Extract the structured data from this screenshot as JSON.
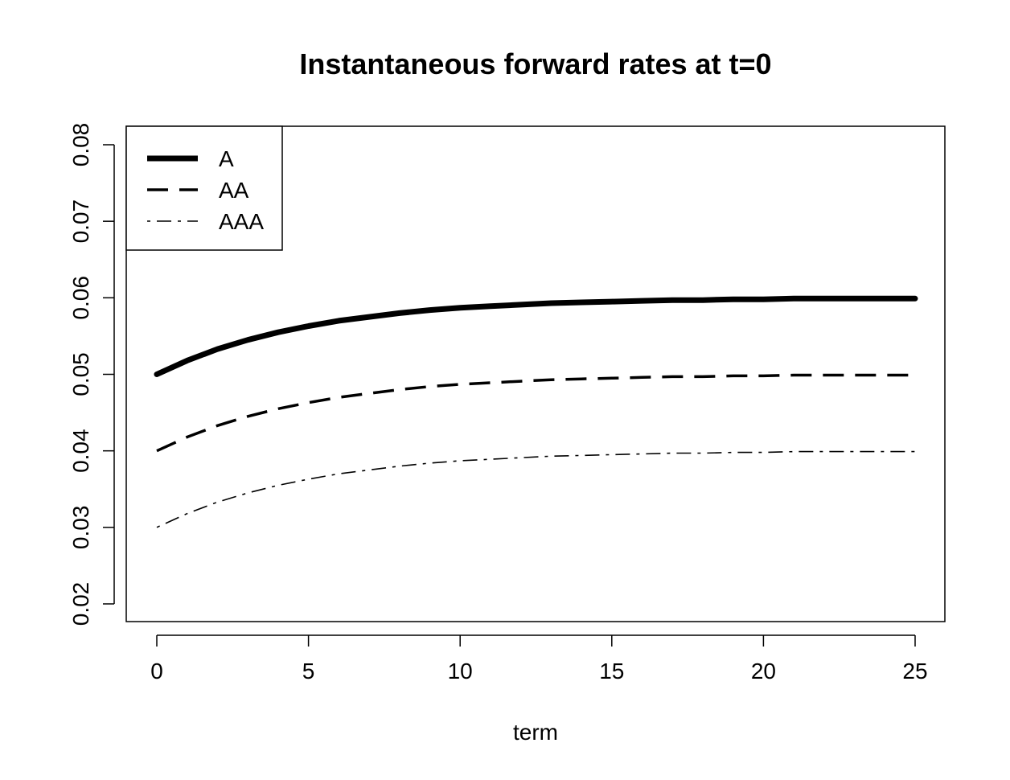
{
  "chart_data": {
    "type": "line",
    "title": "Instantaneous forward rates at t=0",
    "xlabel": "term",
    "ylabel": "",
    "xlim": [
      0,
      25
    ],
    "ylim": [
      0.02,
      0.08
    ],
    "xticks": [
      0,
      5,
      10,
      15,
      20,
      25
    ],
    "xtick_labels": [
      "0",
      "5",
      "10",
      "15",
      "20",
      "25"
    ],
    "yticks": [
      0.02,
      0.03,
      0.04,
      0.05,
      0.06,
      0.07,
      0.08
    ],
    "ytick_labels": [
      "0.02",
      "0.03",
      "0.04",
      "0.05",
      "0.06",
      "0.07",
      "0.08"
    ],
    "grid": false,
    "legend_position": "top-left",
    "x": [
      0,
      1,
      2,
      3,
      4,
      5,
      6,
      7,
      8,
      9,
      10,
      11,
      12,
      13,
      14,
      15,
      16,
      17,
      18,
      19,
      20,
      21,
      22,
      23,
      24,
      25
    ],
    "series": [
      {
        "name": "A",
        "style": "solid-thick",
        "color": "#000000",
        "values": [
          0.05,
          0.0518,
          0.0533,
          0.0545,
          0.0555,
          0.0563,
          0.057,
          0.0575,
          0.058,
          0.0584,
          0.0587,
          0.0589,
          0.0591,
          0.0593,
          0.0594,
          0.0595,
          0.0596,
          0.0597,
          0.0597,
          0.0598,
          0.0598,
          0.0599,
          0.0599,
          0.0599,
          0.0599,
          0.0599
        ]
      },
      {
        "name": "AA",
        "style": "dashed",
        "color": "#000000",
        "values": [
          0.04,
          0.0418,
          0.0433,
          0.0445,
          0.0455,
          0.0463,
          0.047,
          0.0475,
          0.048,
          0.0484,
          0.0487,
          0.0489,
          0.0491,
          0.0493,
          0.0494,
          0.0495,
          0.0496,
          0.0497,
          0.0497,
          0.0498,
          0.0498,
          0.0499,
          0.0499,
          0.0499,
          0.0499,
          0.0499
        ]
      },
      {
        "name": "AAA",
        "style": "dotdash-thin",
        "color": "#000000",
        "values": [
          0.03,
          0.0318,
          0.0333,
          0.0345,
          0.0355,
          0.0363,
          0.037,
          0.0375,
          0.038,
          0.0384,
          0.0387,
          0.0389,
          0.0391,
          0.0393,
          0.0394,
          0.0395,
          0.0396,
          0.0397,
          0.0397,
          0.0398,
          0.0398,
          0.0399,
          0.0399,
          0.0399,
          0.0399,
          0.0399
        ]
      }
    ]
  }
}
